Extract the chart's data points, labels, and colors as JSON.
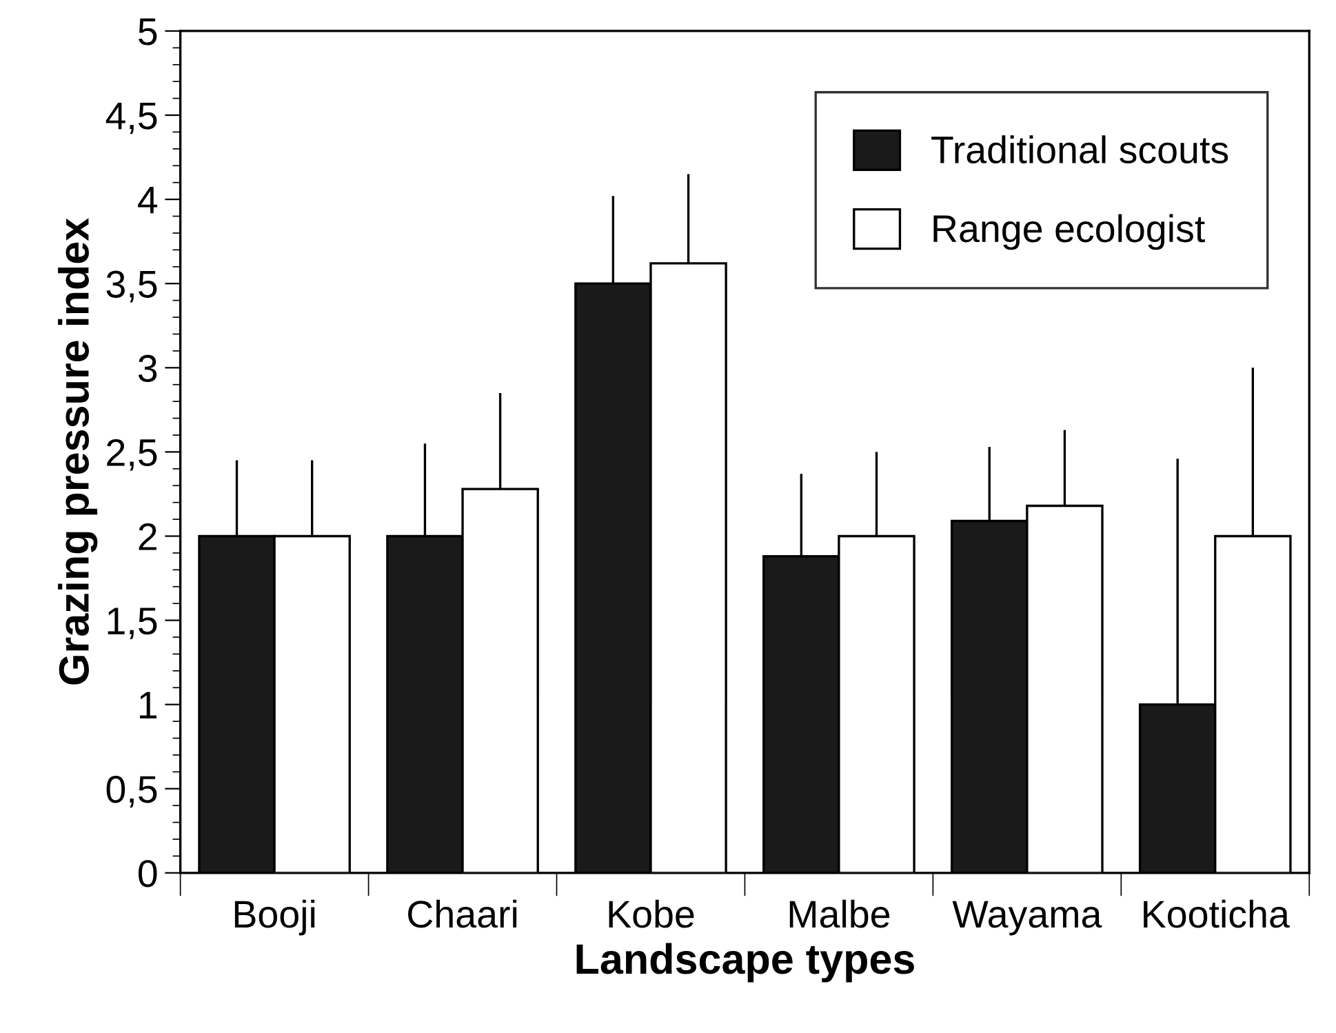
{
  "chart_data": {
    "type": "bar",
    "xlabel": "Landscape types",
    "ylabel": "Grazing pressure index",
    "categories": [
      "Booji",
      "Chaari",
      "Kobe",
      "Malbe",
      "Wayama",
      "Kooticha"
    ],
    "series": [
      {
        "name": "Traditional scouts",
        "color": "#1a1a1a",
        "values": [
          2.0,
          2.0,
          3.5,
          1.88,
          2.09,
          1.0
        ],
        "errors": [
          [
            2.0,
            2.45
          ],
          [
            2.0,
            2.55
          ],
          [
            3.5,
            4.02
          ],
          [
            1.88,
            2.37
          ],
          [
            2.09,
            2.53
          ],
          [
            1.0,
            2.46
          ]
        ]
      },
      {
        "name": "Range ecologist",
        "color": "#ffffff",
        "values": [
          2.0,
          2.28,
          3.62,
          2.0,
          2.18,
          2.0
        ],
        "errors": [
          [
            2.0,
            2.45
          ],
          [
            2.28,
            2.85
          ],
          [
            3.62,
            4.15
          ],
          [
            2.0,
            2.5
          ],
          [
            2.18,
            2.63
          ],
          [
            2.0,
            3.0
          ]
        ]
      }
    ],
    "ylim": [
      0,
      5
    ],
    "yticks": [
      0,
      {
        "value": 0.5,
        "label": "0,5"
      },
      1,
      {
        "value": 1.5,
        "label": "1,5"
      },
      2,
      {
        "value": 2.5,
        "label": "2,5"
      },
      3,
      {
        "value": 3.5,
        "label": "3,5"
      },
      4,
      {
        "value": 4.5,
        "label": "4,5"
      },
      5
    ],
    "legend": "top right",
    "grid": false
  }
}
